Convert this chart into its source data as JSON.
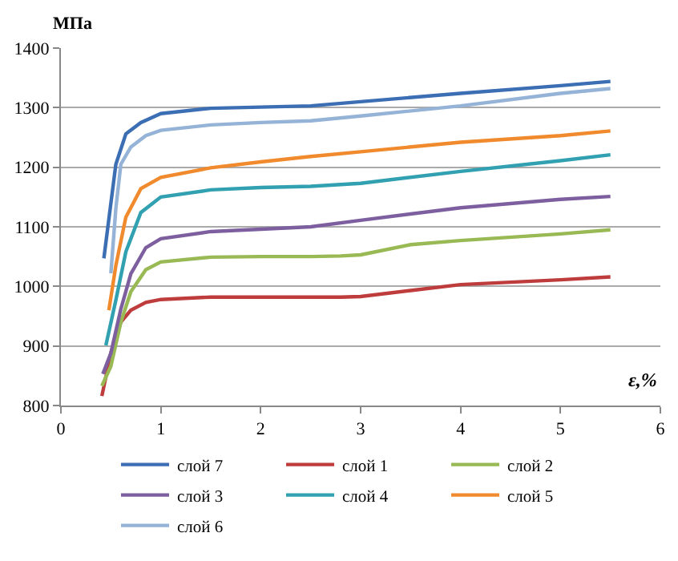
{
  "chart_data": {
    "type": "line",
    "xlabel": "ε,%",
    "ylabel": "МПа",
    "xlim": [
      0,
      6
    ],
    "xticks": [
      0,
      1,
      2,
      3,
      4,
      5,
      6
    ],
    "ylim": [
      800,
      1400
    ],
    "yticks": [
      800,
      900,
      1000,
      1100,
      1200,
      1300,
      1400
    ],
    "grid": "y",
    "legend": "bottom",
    "marker": "none",
    "line_style": "solid",
    "series": [
      {
        "name": "слой 7",
        "color": "#3c6eb4",
        "x": [
          0.43,
          0.55,
          0.65,
          0.8,
          1.0,
          1.5,
          2.0,
          2.5,
          3.0,
          4.0,
          5.0,
          5.5
        ],
        "values": [
          1047,
          1205,
          1256,
          1275,
          1290,
          1299,
          1301,
          1303,
          1310,
          1324,
          1337,
          1344
        ]
      },
      {
        "name": "слой 1",
        "color": "#be3c3c",
        "x": [
          0.41,
          0.5,
          0.6,
          0.7,
          0.85,
          1.0,
          1.5,
          2.0,
          2.5,
          2.8,
          3.0,
          3.5,
          4.0,
          5.0,
          5.5
        ],
        "values": [
          816,
          888,
          940,
          960,
          973,
          978,
          982,
          982,
          982,
          982,
          983,
          993,
          1003,
          1011,
          1016
        ]
      },
      {
        "name": "слой 2",
        "color": "#98b954",
        "x": [
          0.41,
          0.5,
          0.6,
          0.7,
          0.85,
          1.0,
          1.5,
          2.0,
          2.5,
          2.8,
          3.0,
          3.5,
          4.0,
          5.0,
          5.5
        ],
        "values": [
          833,
          866,
          940,
          991,
          1028,
          1041,
          1049,
          1050,
          1050,
          1051,
          1053,
          1070,
          1077,
          1088,
          1095
        ]
      },
      {
        "name": "слой 3",
        "color": "#7d5fa0",
        "x": [
          0.42,
          0.5,
          0.6,
          0.7,
          0.85,
          1.0,
          1.5,
          2.0,
          2.5,
          3.0,
          4.0,
          5.0,
          5.5
        ],
        "values": [
          853,
          888,
          962,
          1021,
          1065,
          1080,
          1092,
          1096,
          1100,
          1111,
          1132,
          1146,
          1151
        ]
      },
      {
        "name": "слой 4",
        "color": "#31a0b0",
        "x": [
          0.45,
          0.55,
          0.65,
          0.8,
          1.0,
          1.5,
          2.0,
          2.5,
          3.0,
          4.0,
          5.0,
          5.5
        ],
        "values": [
          901,
          977,
          1058,
          1124,
          1150,
          1162,
          1166,
          1168,
          1173,
          1193,
          1211,
          1221
        ]
      },
      {
        "name": "слой 5",
        "color": "#f08a2c",
        "x": [
          0.48,
          0.55,
          0.65,
          0.8,
          1.0,
          1.5,
          2.0,
          2.5,
          3.0,
          4.0,
          5.0,
          5.5
        ],
        "values": [
          960,
          1035,
          1116,
          1164,
          1183,
          1199,
          1209,
          1218,
          1226,
          1242,
          1253,
          1261
        ]
      },
      {
        "name": "слой 6",
        "color": "#95b3d7",
        "x": [
          0.5,
          0.55,
          0.6,
          0.7,
          0.85,
          1.0,
          1.5,
          2.0,
          2.5,
          3.0,
          4.0,
          5.0,
          5.5
        ],
        "values": [
          1022,
          1131,
          1205,
          1234,
          1253,
          1262,
          1271,
          1275,
          1278,
          1286,
          1303,
          1324,
          1332
        ]
      }
    ]
  }
}
